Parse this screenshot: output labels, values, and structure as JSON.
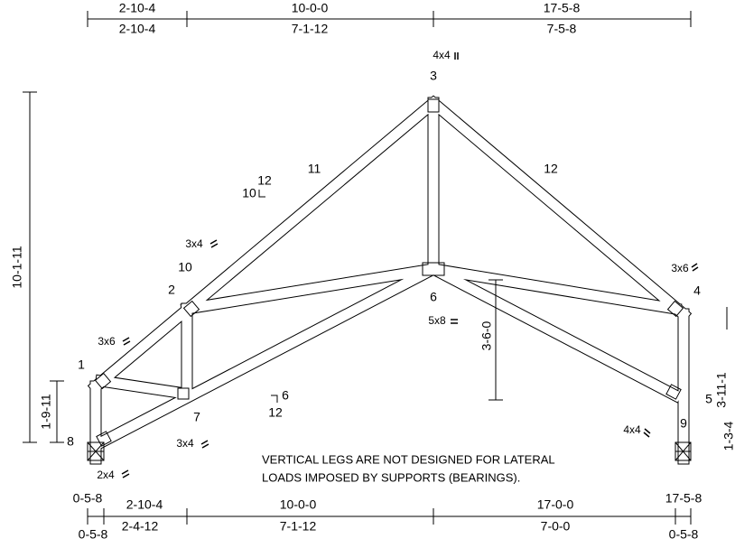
{
  "top_dimensions": {
    "cumulative": [
      "2-10-4",
      "10-0-0",
      "17-5-8"
    ],
    "spans": [
      "2-10-4",
      "7-1-12",
      "7-5-8"
    ]
  },
  "left_dimensions": [
    "10-1-11",
    "1-9-11"
  ],
  "right_dimensions": [
    "3-11-1",
    "1-3-4"
  ],
  "interior_dimension": "3-6-0",
  "bottom_dimensions": {
    "cumulative": [
      "0-5-8",
      "2-10-4",
      "10-0-0",
      "17-0-0",
      "17-5-8"
    ],
    "spans": [
      "0-5-8",
      "2-4-12",
      "7-1-12",
      "7-0-0",
      "0-5-8"
    ]
  },
  "joints": [
    "1",
    "2",
    "3",
    "4",
    "5",
    "6",
    "7",
    "8",
    "9"
  ],
  "members": [
    "10",
    "11",
    "12"
  ],
  "plates": [
    "4x4",
    "3x4",
    "3x6",
    "3x6",
    "5x8",
    "4x4",
    "3x4",
    "2x4"
  ],
  "slopes": [
    {
      "rise": "10",
      "run": "12"
    },
    {
      "rise": "6",
      "run": "12"
    }
  ],
  "note": [
    "VERTICAL LEGS ARE NOT DESIGNED FOR LATERAL",
    "LOADS IMPOSED BY SUPPORTS (BEARINGS)."
  ]
}
